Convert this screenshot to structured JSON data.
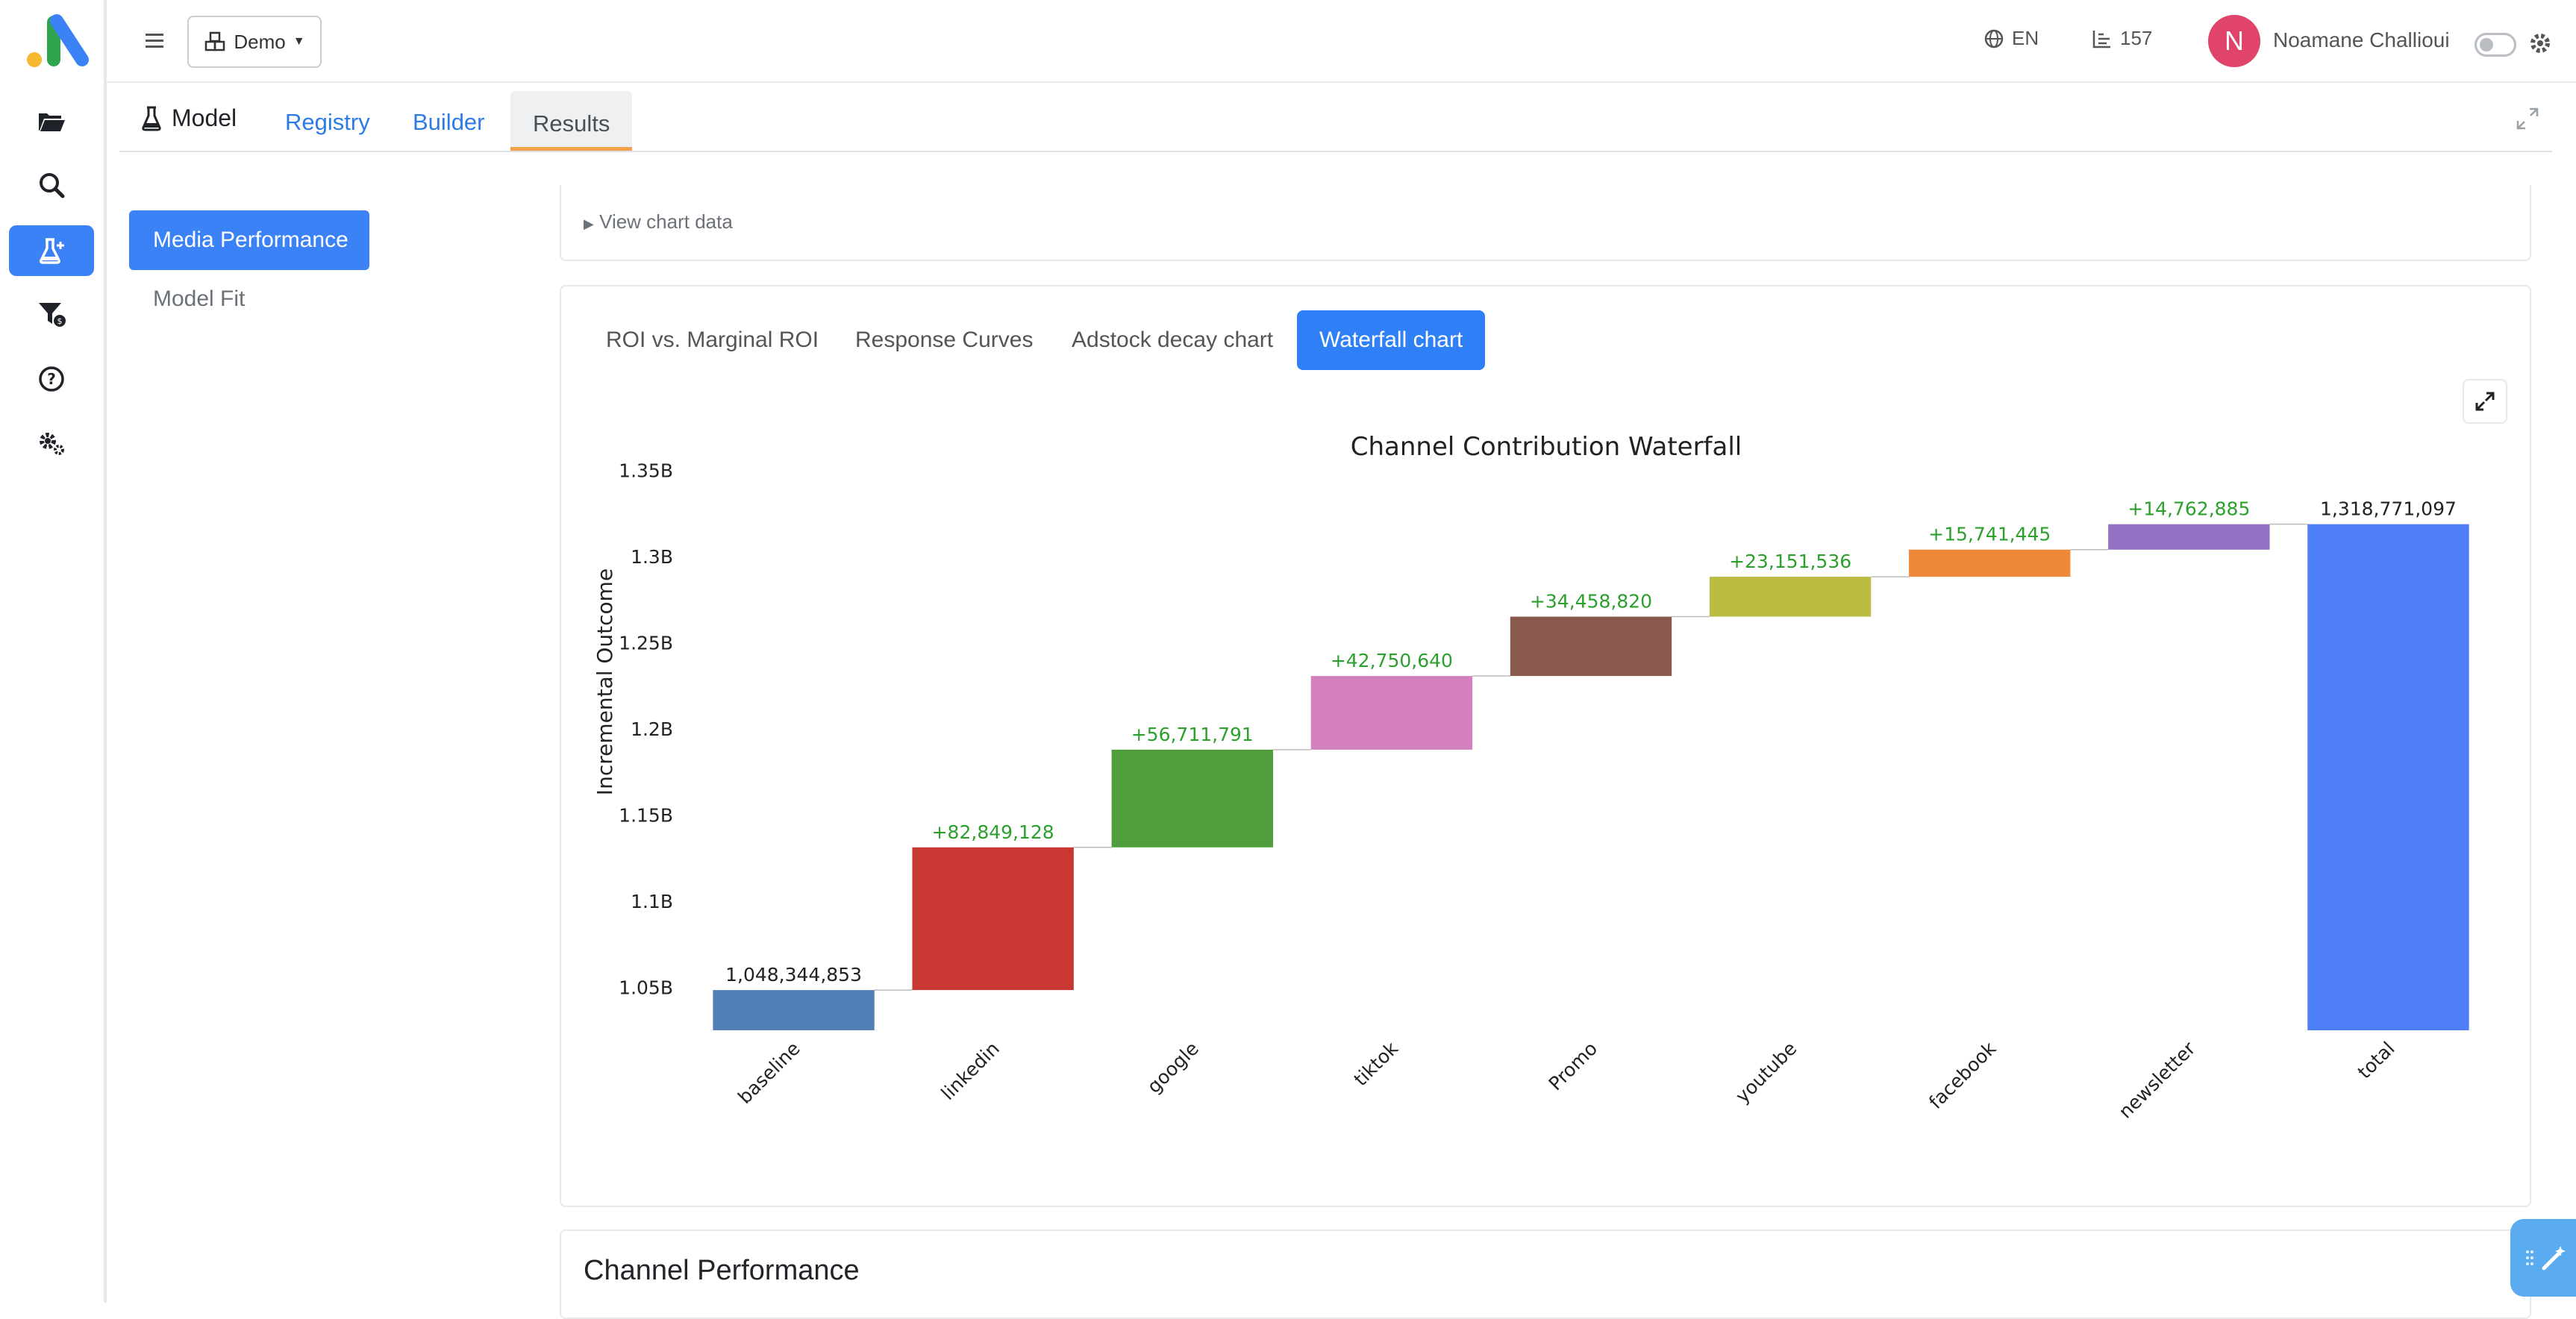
{
  "topbar": {
    "workspace": "Demo",
    "language": "EN",
    "count": "157",
    "user_initial": "N",
    "user_name": "Noamane Challioui"
  },
  "tabs": {
    "title": "Model",
    "items": [
      "Registry",
      "Builder",
      "Results"
    ],
    "active": "Results"
  },
  "left_nav": {
    "items": [
      "Media Performance",
      "Model Fit"
    ],
    "active": "Media Performance"
  },
  "details_summary": "View chart data",
  "chart_tabs": {
    "items": [
      "ROI vs. Marginal ROI",
      "Response Curves",
      "Adstock decay chart",
      "Waterfall chart"
    ],
    "active": "Waterfall chart"
  },
  "bottom_card_title": "Channel Performance",
  "colors": {
    "accent": "#3b82f6",
    "increase_text": "#2ca02c",
    "tab_underline": "#f5a04a"
  },
  "chart_data": {
    "type": "waterfall",
    "title": "Channel Contribution Waterfall",
    "ylabel": "Incremental Outcome",
    "xlabel": "",
    "ylim": [
      1025000000.0,
      1355000000.0
    ],
    "yticks": [
      {
        "value": 1050000000.0,
        "label": "1.05B"
      },
      {
        "value": 1100000000.0,
        "label": "1.1B"
      },
      {
        "value": 1150000000.0,
        "label": "1.15B"
      },
      {
        "value": 1200000000.0,
        "label": "1.2B"
      },
      {
        "value": 1250000000.0,
        "label": "1.25B"
      },
      {
        "value": 1300000000.0,
        "label": "1.3B"
      },
      {
        "value": 1350000000.0,
        "label": "1.35B"
      }
    ],
    "categories": [
      "baseline",
      "linkedin",
      "google",
      "tiktok",
      "Promo",
      "youtube",
      "facebook",
      "newsletter",
      "total"
    ],
    "values": [
      1048344853,
      82849128,
      56711791,
      42750640,
      34458820,
      23151536,
      15741445,
      14762885,
      1318771097
    ],
    "labels": [
      "1,048,344,853",
      "+82,849,128",
      "+56,711,791",
      "+42,750,640",
      "+34,458,820",
      "+23,151,536",
      "+15,741,445",
      "+14,762,885",
      "1,318,771,097"
    ],
    "measures": [
      "absolute",
      "relative",
      "relative",
      "relative",
      "relative",
      "relative",
      "relative",
      "relative",
      "total"
    ],
    "colors": [
      "#4f7fb4",
      "#c83731",
      "#509e3b",
      "#d47fbe",
      "#8a5a4f",
      "#bcbc43",
      "#f0883a",
      "#9371c3",
      "#4d7ef5"
    ],
    "grid": false,
    "legend": "none"
  }
}
